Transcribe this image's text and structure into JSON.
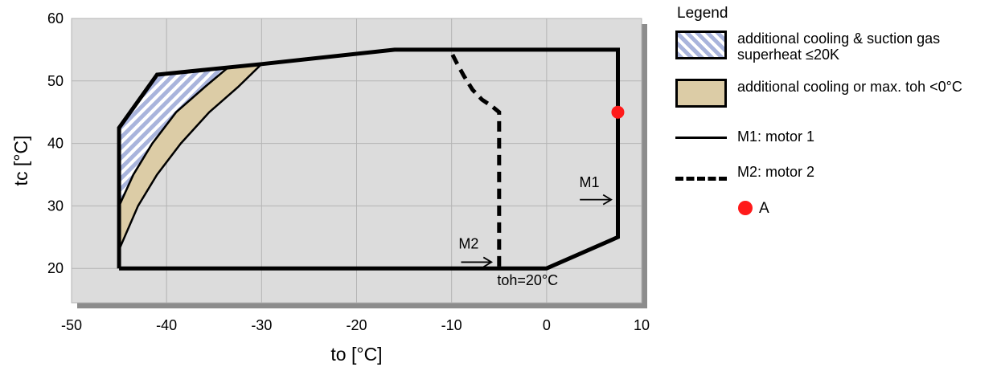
{
  "chart_data": {
    "type": "area",
    "xlabel": "to [°C]",
    "ylabel": "tc [°C]",
    "xlim": [
      -50,
      10
    ],
    "ylim": [
      14.5,
      60
    ],
    "xticks": [
      -50,
      -40,
      -30,
      -20,
      -10,
      0,
      10
    ],
    "yticks": [
      20,
      30,
      40,
      50,
      60
    ],
    "grid": true,
    "legend_placement": "right",
    "series": [
      {
        "name": "M1: motor 1",
        "kind": "envelope",
        "points": [
          [
            -45,
            20
          ],
          [
            0,
            20
          ],
          [
            7.5,
            25
          ],
          [
            7.5,
            55
          ],
          [
            -16,
            55
          ],
          [
            -30,
            52.7
          ],
          [
            -41,
            51
          ],
          [
            -45,
            42.5
          ],
          [
            -45,
            20
          ]
        ]
      },
      {
        "name": "M2: motor 2",
        "kind": "dashed",
        "points": [
          [
            -5,
            20.3
          ],
          [
            -5,
            45
          ],
          [
            -5.8,
            46
          ],
          [
            -6.8,
            47
          ],
          [
            -7.8,
            48.6
          ],
          [
            -8.7,
            50.8
          ],
          [
            -9.5,
            53
          ],
          [
            -10,
            54.5
          ]
        ]
      },
      {
        "name": "additional cooling & suction gas superheat ≤20K",
        "kind": "hatched",
        "points": [
          [
            -41,
            51
          ],
          [
            -33.5,
            52.2
          ],
          [
            -36,
            49
          ],
          [
            -39,
            45
          ],
          [
            -41.5,
            40
          ],
          [
            -43.5,
            35
          ],
          [
            -45,
            30
          ],
          [
            -45,
            42.5
          ]
        ]
      },
      {
        "name": "additional cooling or max. toh <0°C",
        "kind": "fill",
        "points": [
          [
            -45,
            30
          ],
          [
            -43.5,
            35
          ],
          [
            -41.5,
            40
          ],
          [
            -39,
            45
          ],
          [
            -36,
            49
          ],
          [
            -33.5,
            52.2
          ],
          [
            -30,
            52.7
          ],
          [
            -32.5,
            49
          ],
          [
            -35.5,
            45
          ],
          [
            -38.5,
            40
          ],
          [
            -41,
            35
          ],
          [
            -43,
            30
          ],
          [
            -45,
            23
          ]
        ]
      }
    ],
    "markers": [
      {
        "name": "A",
        "x": 7.5,
        "y": 45,
        "color": "#ff1a1a"
      }
    ],
    "annotations": [
      {
        "text": "M1",
        "x": 4.5,
        "y": 33,
        "arrow_from": [
          3.5,
          31
        ],
        "arrow_to": [
          6.8,
          31
        ]
      },
      {
        "text": "M2",
        "x": -8.2,
        "y": 23.2,
        "arrow_from": [
          -9,
          21
        ],
        "arrow_to": [
          -5.8,
          21
        ]
      },
      {
        "text": "toh=20°C",
        "x": -2,
        "y": 17.3
      }
    ]
  },
  "legend": {
    "title": "Legend",
    "item1": "additional cooling & suction gas superheat ≤20K",
    "item2": "additional cooling or max. toh <0°C",
    "item3": "M1: motor 1",
    "item4": "M2: motor 2",
    "item5": "A"
  },
  "colors": {
    "plot_bg": "#dcdcdc",
    "grid": "#b4b4b4",
    "shadow": "#8c8c8c",
    "hatch": "#a9b4dc",
    "fill": "#dccca6",
    "marker": "#ff1a1a"
  }
}
